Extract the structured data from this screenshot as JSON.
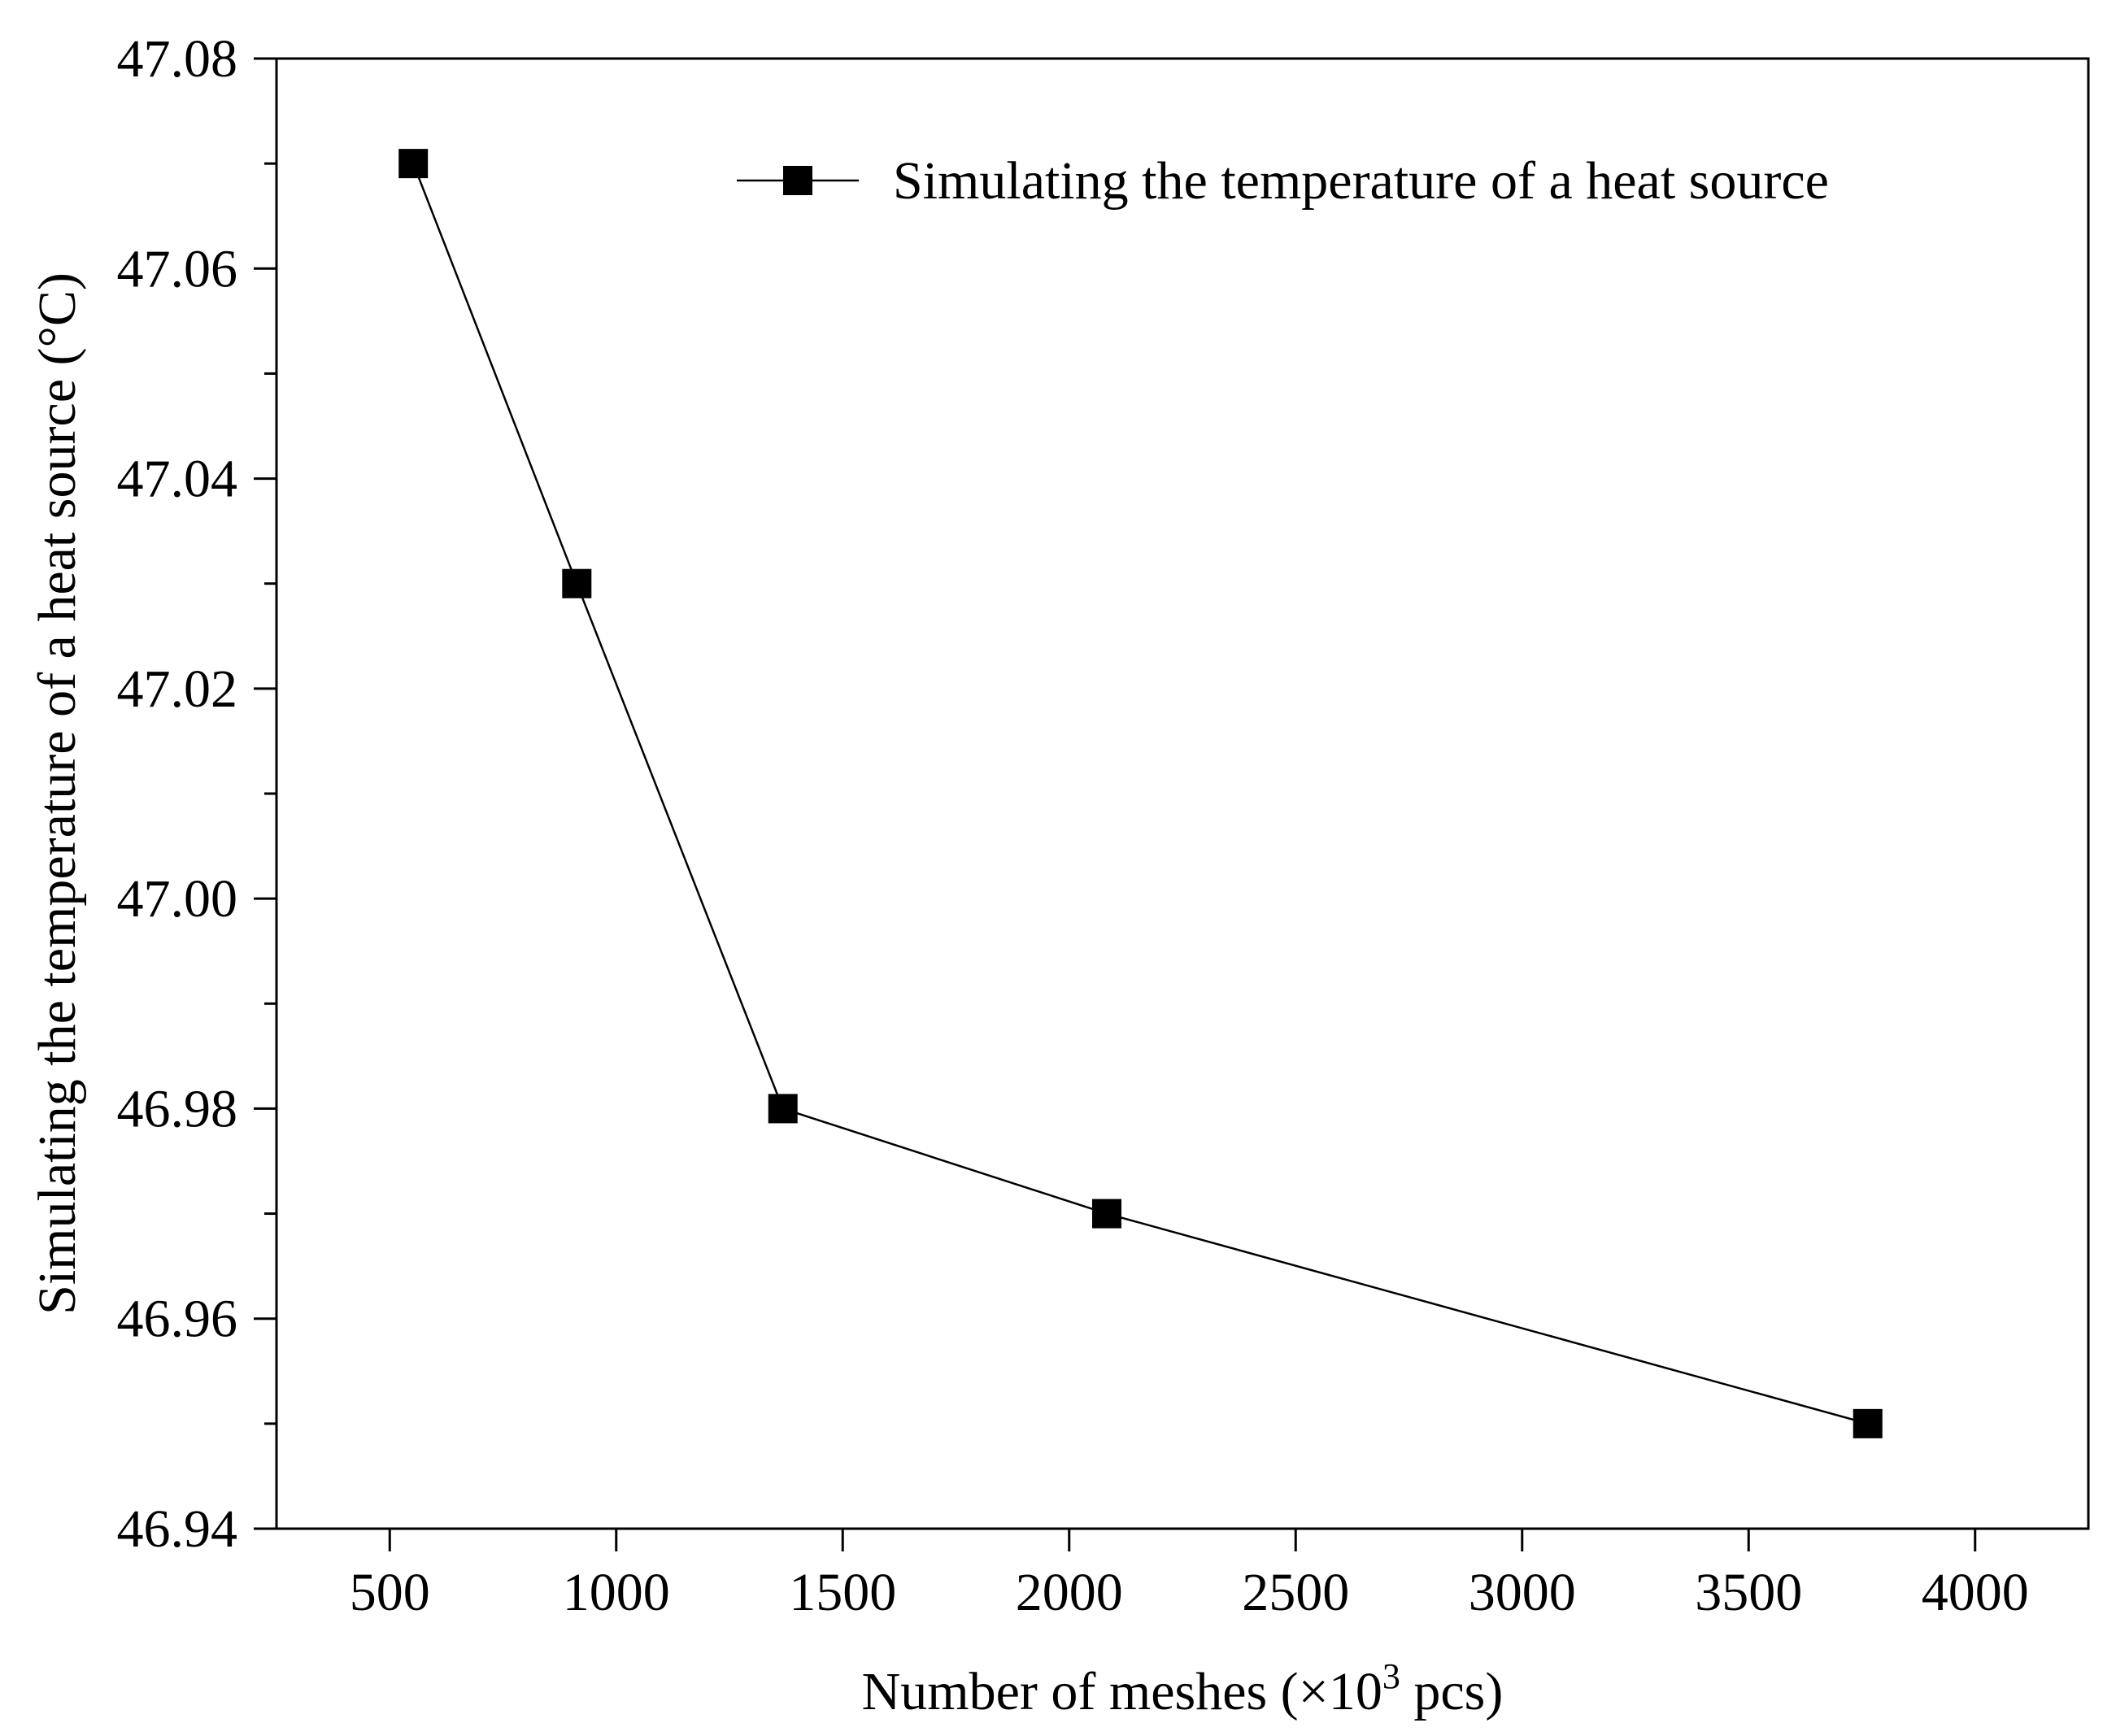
{
  "chart_data": {
    "type": "line",
    "xlabel_main": "Number of meshes (×10",
    "xlabel_sup": "3",
    "xlabel_end": " pcs)",
    "ylabel": "Simulating the temperature of a heat source (°C)",
    "xlim": [
      250,
      4250
    ],
    "ylim": [
      46.94,
      47.08
    ],
    "x_ticks": [
      500,
      1000,
      1500,
      2000,
      2500,
      3000,
      3500,
      4000
    ],
    "x_tick_labels": [
      "500",
      "1000",
      "1500",
      "2000",
      "2500",
      "3000",
      "3500",
      "4000"
    ],
    "y_ticks": [
      46.94,
      46.96,
      46.98,
      47.0,
      47.02,
      47.04,
      47.06,
      47.08
    ],
    "y_tick_labels": [
      "46.94",
      "46.96",
      "46.98",
      "47.00",
      "47.02",
      "47.04",
      "47.06",
      "47.08"
    ],
    "y_minor_ticks": [
      46.95,
      46.97,
      46.99,
      47.01,
      47.03,
      47.05,
      47.07
    ],
    "legend_position": "top-right",
    "series": [
      {
        "name": "Simulating the temperature of a heat source",
        "marker": "square",
        "color": "#000000",
        "x": [
          552,
          913,
          1368,
          2083,
          3763
        ],
        "y": [
          47.07,
          47.03,
          46.98,
          46.97,
          46.95
        ]
      }
    ]
  }
}
